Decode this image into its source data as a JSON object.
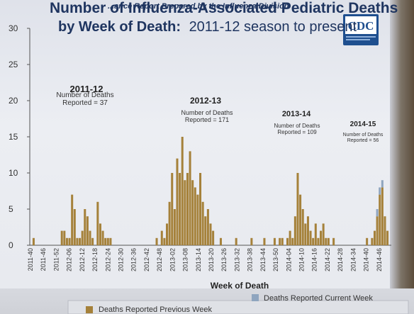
{
  "header": {
    "report_line": "...ance Report Prepared by the Influenza Division",
    "logo_text": "CDC"
  },
  "colors": {
    "previous_week": "#a5813a",
    "current_week": "#8fa5bf",
    "title": "#1f3560"
  },
  "chart_data": {
    "type": "bar",
    "title": "Number of Influenza-Associated Pediatric Deaths",
    "title_line2_bold": "by Week of Death:",
    "title_line2_rest": "2011-12 season to present",
    "xlabel": "Week of Death",
    "ylabel": "",
    "ylim": [
      0,
      30
    ],
    "y_ticks": [
      "0",
      "5",
      "10",
      "15",
      "20",
      "25",
      "30"
    ],
    "x_tick_labels": [
      "2011-40",
      "2011-46",
      "2011-52",
      "2012-06",
      "2012-12",
      "2012-18",
      "2012-24",
      "2012-30",
      "2012-36",
      "2012-42",
      "2012-48",
      "2013-02",
      "2013-08",
      "2013-14",
      "2013-20",
      "2013-26",
      "2013-32",
      "2013-38",
      "2013-44",
      "2013-50",
      "2014-04",
      "2014-10",
      "2014-16",
      "2014-22",
      "2014-28",
      "2014-34",
      "2014-40",
      "2014-46"
    ],
    "legend": "bottom",
    "series": [
      {
        "name": "Deaths Reported Previous Week",
        "values": [
          0,
          1,
          0,
          0,
          0,
          0,
          0,
          0,
          0,
          0,
          0,
          0,
          2,
          2,
          1,
          1,
          7,
          5,
          1,
          1,
          2,
          5,
          4,
          2,
          1,
          0,
          6,
          3,
          2,
          1,
          1,
          1,
          0,
          0,
          0,
          0,
          0,
          0,
          0,
          0,
          0,
          0,
          0,
          0,
          0,
          0,
          0,
          0,
          0,
          1,
          0,
          2,
          1,
          3,
          6,
          10,
          5,
          12,
          10,
          15,
          9,
          10,
          13,
          9,
          8,
          7,
          10,
          6,
          4,
          5,
          3,
          2,
          0,
          0,
          1,
          0,
          0,
          0,
          0,
          0,
          1,
          0,
          0,
          0,
          0,
          0,
          1,
          0,
          0,
          0,
          0,
          1,
          0,
          0,
          0,
          1,
          0,
          1,
          1,
          0,
          1,
          2,
          1,
          4,
          10,
          7,
          5,
          3,
          4,
          2,
          1,
          3,
          1,
          2,
          3,
          1,
          1,
          0,
          1,
          0,
          0,
          0,
          0,
          0,
          0,
          0,
          0,
          0,
          0,
          0,
          0,
          1,
          0,
          1,
          2,
          4,
          7,
          8,
          4,
          2,
          0
        ]
      },
      {
        "name": "Deaths Reported Current Week",
        "values": [
          0,
          0,
          0,
          0,
          0,
          0,
          0,
          0,
          0,
          0,
          0,
          0,
          0,
          0,
          0,
          0,
          0,
          0,
          0,
          0,
          0,
          0,
          0,
          0,
          0,
          0,
          0,
          0,
          0,
          0,
          0,
          0,
          0,
          0,
          0,
          0,
          0,
          0,
          0,
          0,
          0,
          0,
          0,
          0,
          0,
          0,
          0,
          0,
          0,
          0,
          0,
          0,
          0,
          0,
          0,
          0,
          0,
          0,
          0,
          0,
          0,
          0,
          0,
          0,
          0,
          0,
          0,
          0,
          0,
          0,
          0,
          0,
          0,
          0,
          0,
          0,
          0,
          0,
          0,
          0,
          0,
          0,
          0,
          0,
          0,
          0,
          0,
          0,
          0,
          0,
          0,
          0,
          0,
          0,
          0,
          0,
          0,
          0,
          0,
          0,
          0,
          0,
          0,
          0,
          0,
          0,
          0,
          0,
          0,
          0,
          0,
          0,
          0,
          0,
          0,
          0,
          0,
          0,
          0,
          0,
          0,
          0,
          0,
          0,
          0,
          0,
          0,
          0,
          0,
          0,
          0,
          0,
          0,
          0,
          0,
          1,
          1,
          1,
          0,
          0,
          0
        ]
      }
    ],
    "annotations": [
      {
        "season": "2011-12",
        "note_line1": "Number of Deaths",
        "note_line2": "Reported = 37"
      },
      {
        "season": "2012-13",
        "note_line1": "Number of Deaths",
        "note_line2": "Reported = 171"
      },
      {
        "season": "2013-14",
        "note_line1": "Number of Deaths",
        "note_line2": "Reported = 109"
      },
      {
        "season": "2014-15",
        "note_line1": "Number of Deaths",
        "note_line2": "Reported = 56"
      }
    ]
  }
}
